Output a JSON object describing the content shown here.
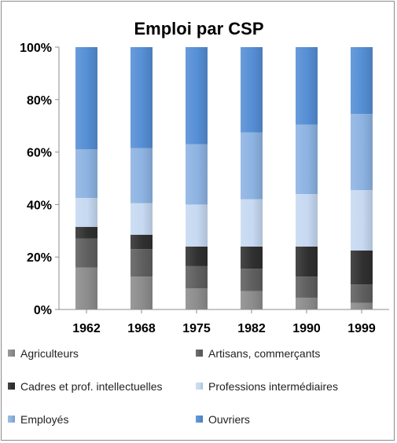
{
  "chart_data": {
    "type": "bar",
    "stacked": true,
    "percent": true,
    "title": "Emploi par CSP",
    "categories": [
      "1962",
      "1968",
      "1975",
      "1982",
      "1990",
      "1999"
    ],
    "y_ticks": [
      "0%",
      "20%",
      "40%",
      "60%",
      "80%",
      "100%"
    ],
    "ylim": [
      0,
      100
    ],
    "grid": false,
    "legend_position": "bottom",
    "series": [
      {
        "name": "Agriculteurs",
        "color": "#8c8c8c",
        "values": [
          16,
          12.5,
          8,
          7,
          4.5,
          2.5
        ]
      },
      {
        "name": "Artisans, commerçants",
        "color": "#5f5f5f",
        "values": [
          11,
          10.5,
          8.5,
          8.5,
          8,
          7
        ]
      },
      {
        "name": "Cadres et prof. intellectuelles",
        "color": "#303030",
        "values": [
          4.5,
          5.5,
          7.5,
          8.5,
          11.5,
          13
        ]
      },
      {
        "name": "Professions intermédiaires",
        "color": "#c6d9f1",
        "values": [
          11,
          12,
          16,
          18,
          20,
          23
        ]
      },
      {
        "name": "Employés",
        "color": "#8db3e2",
        "values": [
          18.5,
          21,
          23,
          25.5,
          26.5,
          29
        ]
      },
      {
        "name": "Ouvriers",
        "color": "#558ed5",
        "values": [
          39,
          38.5,
          37,
          32.5,
          29.5,
          25.5
        ]
      }
    ]
  }
}
